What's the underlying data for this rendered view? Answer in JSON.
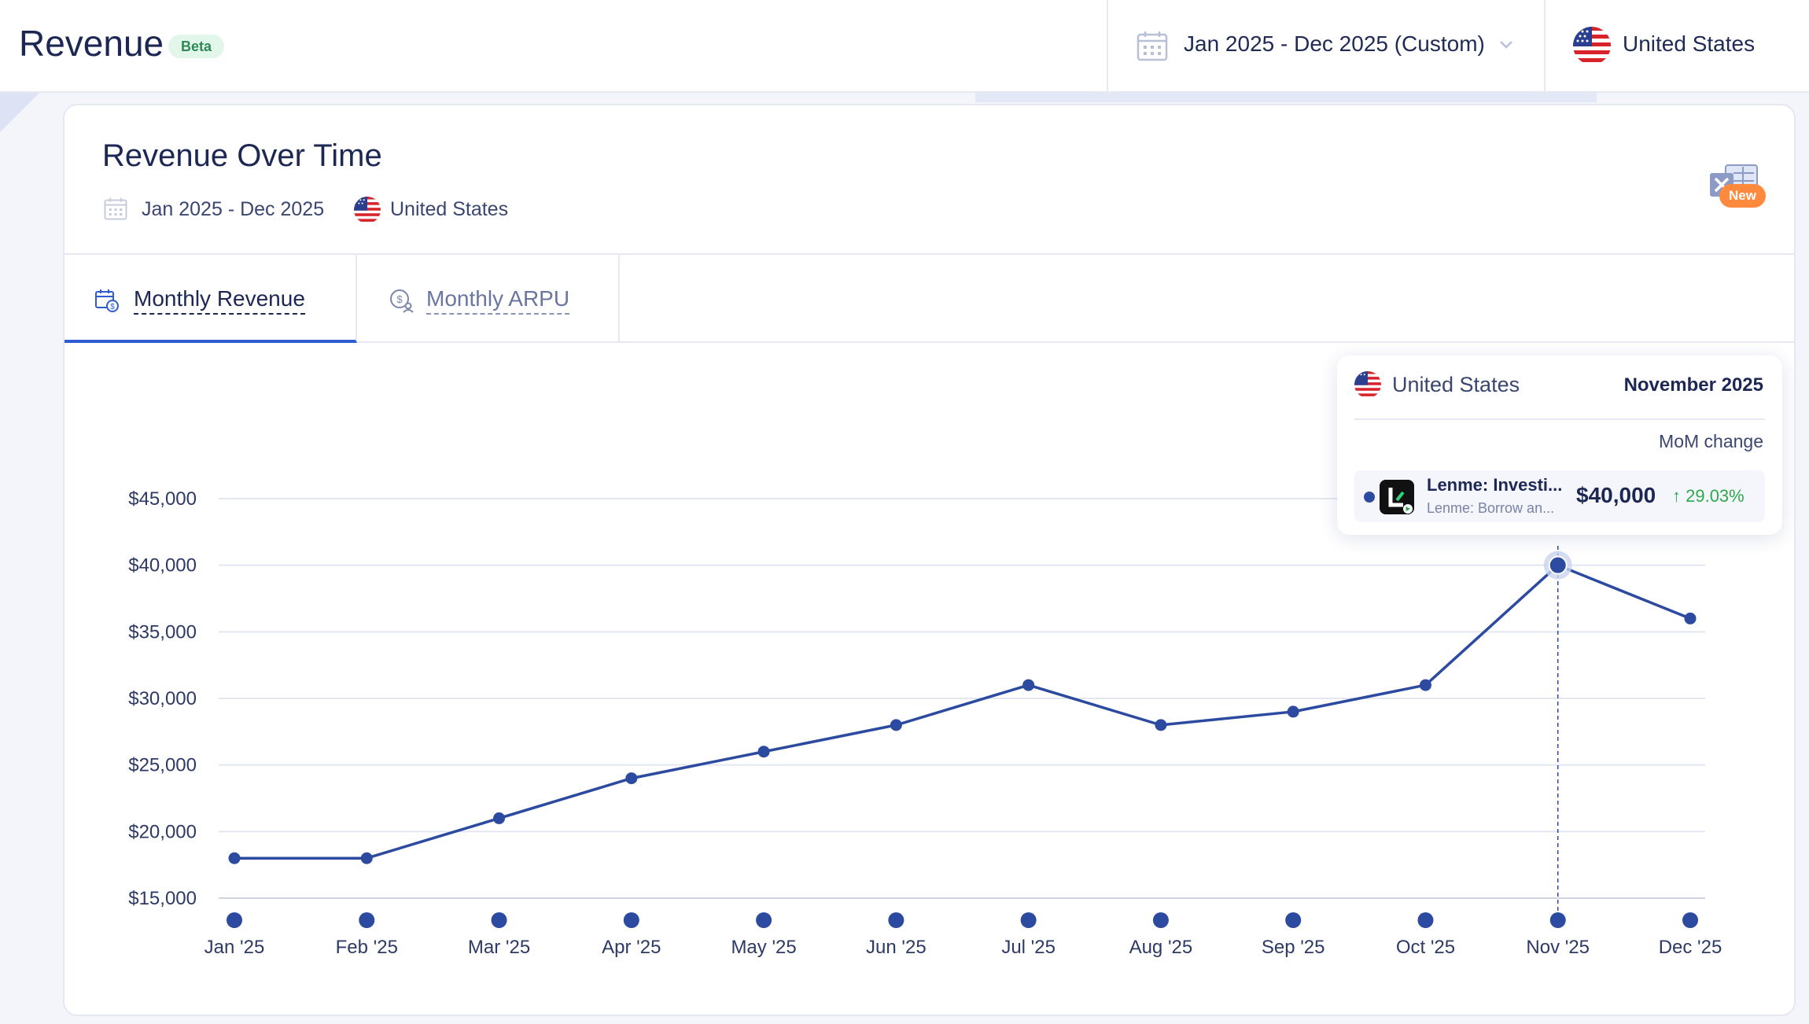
{
  "header": {
    "title": "Revenue",
    "badge": "Beta",
    "date_range": "Jan 2025 - Dec 2025 (Custom)",
    "country": "United States"
  },
  "card": {
    "title": "Revenue Over Time",
    "date_range": "Jan 2025 - Dec 2025",
    "country": "United States",
    "export_badge": "New"
  },
  "tabs": [
    {
      "label": "Monthly Revenue",
      "active": true
    },
    {
      "label": "Monthly ARPU",
      "active": false
    }
  ],
  "tooltip": {
    "country": "United States",
    "month": "November 2025",
    "column_label": "MoM change",
    "app_name": "Lenme: Investi...",
    "app_subtitle": "Lenme: Borrow an...",
    "value": "$40,000",
    "change": "↑ 29.03%"
  },
  "colors": {
    "line": "#2b4aa0",
    "grid": "#e3e7f1",
    "accent": "#2f5bd3",
    "positive": "#2fa84f",
    "badge_orange": "#ff8a3d"
  },
  "chart_data": {
    "type": "line",
    "categories": [
      "Jan '25",
      "Feb '25",
      "Mar '25",
      "Apr '25",
      "May '25",
      "Jun '25",
      "Jul '25",
      "Aug '25",
      "Sep '25",
      "Oct '25",
      "Nov '25",
      "Dec '25"
    ],
    "series": [
      {
        "values": [
          18000,
          18000,
          21000,
          24000,
          26000,
          28000,
          31000,
          28000,
          29000,
          31000,
          40000,
          36000
        ]
      }
    ],
    "y_ticks": [
      "$15,000",
      "$20,000",
      "$25,000",
      "$30,000",
      "$35,000",
      "$40,000",
      "$45,000"
    ],
    "ylim": [
      15000,
      45000
    ],
    "highlight_index": 10,
    "grid": true
  }
}
